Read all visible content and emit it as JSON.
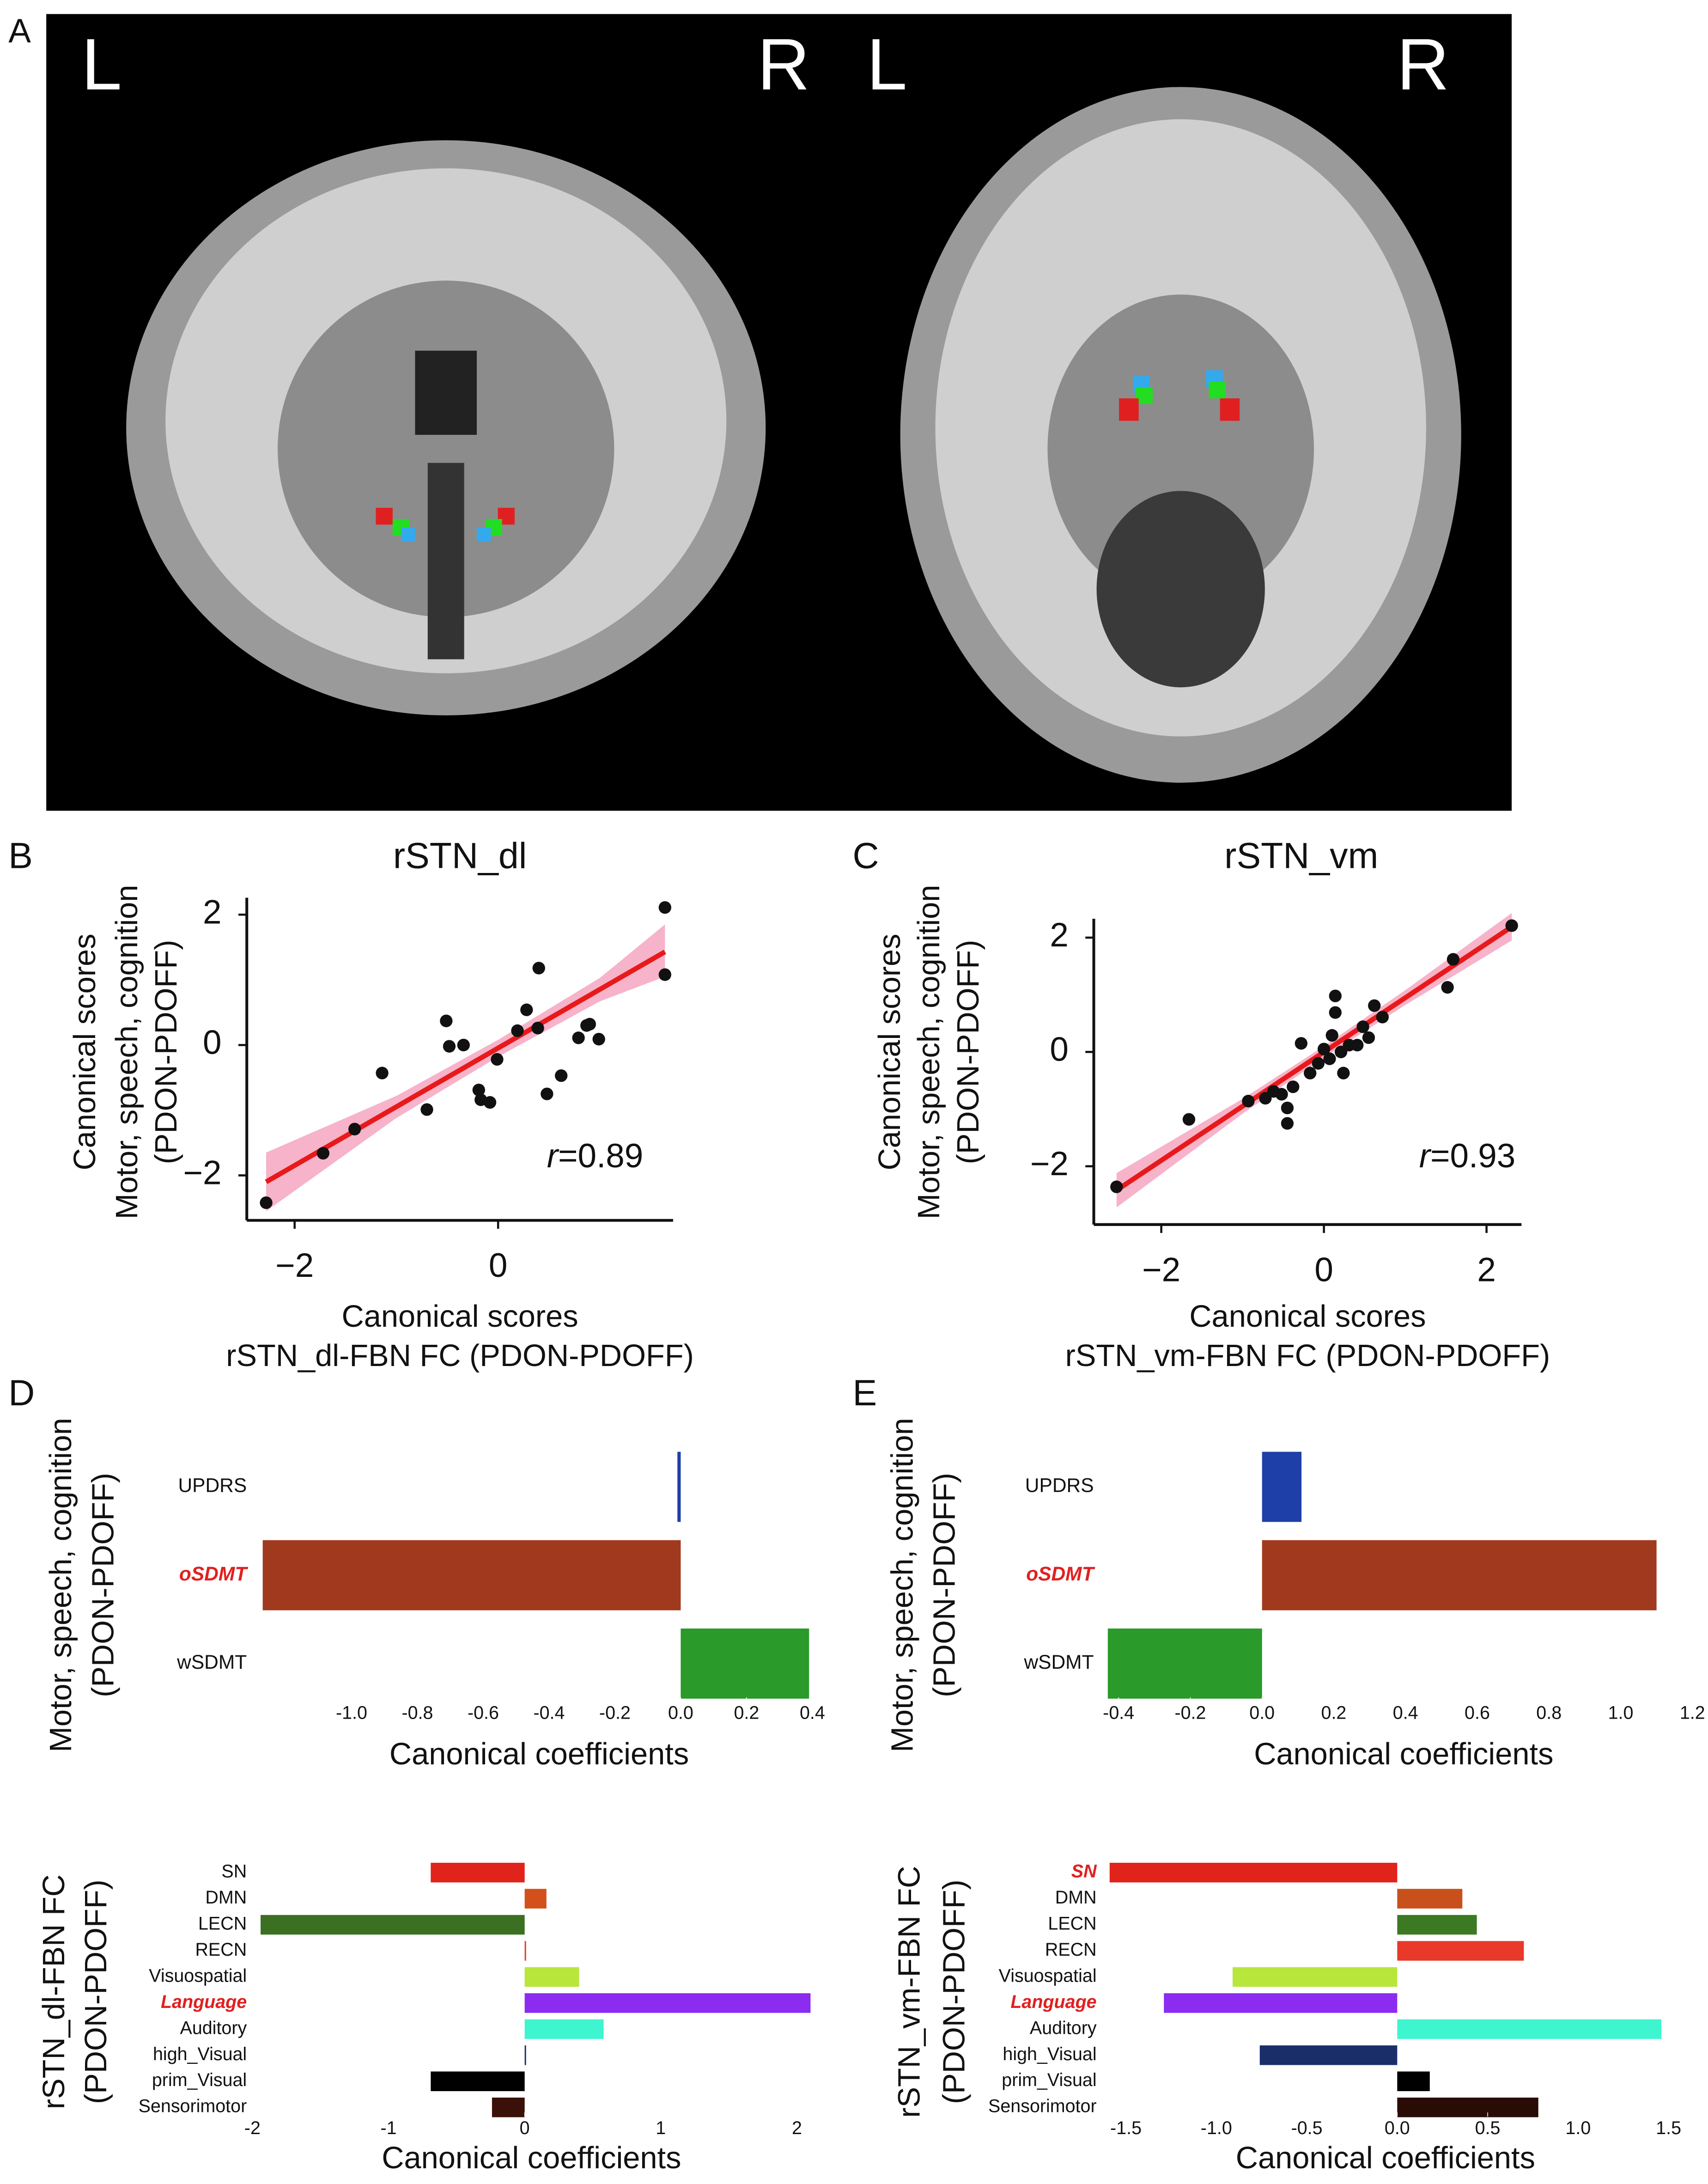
{
  "panel_a": {
    "label": "A",
    "sides": [
      "L",
      "R",
      "L",
      "R"
    ]
  },
  "chart_data": [
    {
      "type": "scatter",
      "panel": "B",
      "title": "rSTN_dl",
      "x_label": [
        "Canonical scores",
        "rSTN_dl-FBN FC (PDON-PDOFF)"
      ],
      "y_label": [
        "Canonical scores",
        "Motor, speech, cognition",
        "(PDON-PDOFF)"
      ],
      "annotation": "r=0.89",
      "color": "#111111",
      "fit_color": "#e8191b",
      "ci_color": "#f4a6c0",
      "x": [
        -2.28,
        -1.72,
        -1.41,
        -1.14,
        -0.7,
        -0.51,
        -0.48,
        -0.34,
        -0.19,
        -0.17,
        -0.08,
        -0.01,
        0.19,
        0.28,
        0.4,
        0.39,
        0.48,
        0.62,
        0.79,
        0.87,
        0.9,
        0.99,
        1.64,
        1.64
      ],
      "values": [
        -2.42,
        -1.66,
        -1.29,
        -0.43,
        -0.99,
        0.37,
        -0.02,
        0,
        -0.69,
        -0.84,
        -0.88,
        -0.22,
        0.22,
        0.54,
        1.18,
        0.26,
        -0.75,
        -0.47,
        0.11,
        0.3,
        0.32,
        0.09,
        2.11,
        1.08
      ],
      "fit": {
        "x": [
          -2.28,
          1.64
        ],
        "y": [
          -2.1,
          1.43
        ]
      },
      "ci": {
        "x": [
          -2.28,
          -1,
          0,
          1,
          1.64
        ],
        "lower": [
          -2.55,
          -1.12,
          -0.18,
          0.67,
          1.05
        ],
        "upper": [
          -1.65,
          -0.78,
          0.08,
          1.03,
          1.85
        ]
      },
      "xlim": [
        -2.47,
        1.72
      ],
      "ylim": [
        -2.69,
        2.26
      ],
      "xticks": [
        {
          "value": -2,
          "label": "−2"
        },
        0
      ],
      "yticks": [
        {
          "value": -2,
          "label": "−2"
        },
        0,
        2
      ]
    },
    {
      "type": "scatter",
      "panel": "C",
      "title": "rSTN_vm",
      "x_label": [
        "Canonical scores",
        "rSTN_vm-FBN FC (PDON-PDOFF)"
      ],
      "y_label": [
        "Canonical scores",
        "Motor, speech, cognition",
        "(PDON-PDOFF)"
      ],
      "annotation": "r=0.93",
      "color": "#111111",
      "fit_color": "#e8191b",
      "ci_color": "#f4a6c0",
      "x": [
        -2.55,
        -1.66,
        -0.93,
        -0.72,
        -0.62,
        -0.52,
        -0.45,
        -0.45,
        -0.38,
        -0.28,
        -0.17,
        -0.07,
        0,
        0.07,
        0.1,
        0.14,
        0.14,
        0.21,
        0.24,
        0.31,
        0.41,
        0.48,
        0.55,
        0.62,
        0.72,
        1.52,
        1.59,
        2.31
      ],
      "values": [
        -2.36,
        -1.18,
        -0.86,
        -0.81,
        -0.69,
        -0.74,
        -0.98,
        -1.25,
        -0.61,
        0.15,
        -0.37,
        -0.2,
        0.05,
        -0.12,
        0.29,
        0.98,
        0.69,
        0,
        -0.37,
        0.12,
        0.12,
        0.44,
        0.25,
        0.81,
        0.61,
        1.13,
        1.62,
        2.21
      ],
      "fit": {
        "x": [
          -2.55,
          2.31
        ],
        "y": [
          -2.42,
          2.19
        ]
      },
      "ci": {
        "x": [
          -2.55,
          -1,
          0,
          1,
          2.31
        ],
        "lower": [
          -2.72,
          -1.08,
          -0.1,
          0.82,
          1.95
        ],
        "upper": [
          -2.12,
          -0.82,
          0.1,
          1.08,
          2.43
        ]
      },
      "xlim": [
        -2.83,
        2.43
      ],
      "ylim": [
        -3.02,
        2.33
      ],
      "xticks": [
        {
          "value": -2,
          "label": "−2"
        },
        0,
        2
      ],
      "yticks": [
        {
          "value": -2,
          "label": "−2"
        },
        0,
        2
      ]
    },
    {
      "type": "bar",
      "orientation": "horizontal",
      "panel": "D",
      "x_label": "Canonical coefficients",
      "y_label": [
        "Motor, speech, cognition",
        "(PDON-PDOFF)"
      ],
      "categories": [
        "UPDRS",
        "oSDMT",
        "wSDMT"
      ],
      "values": [
        -0.01,
        -1.27,
        0.39
      ],
      "colors": [
        "#1f3fa8",
        "#a0391e",
        "#2a9a2a"
      ],
      "highlight": [
        1
      ],
      "highlight_color": "#e02020",
      "xlim": [
        -1.28,
        0.42
      ],
      "xticks": [
        {
          "value": -1,
          "label": "-1.0"
        },
        -0.8,
        -0.6,
        -0.4,
        -0.2,
        {
          "value": 0,
          "label": "0.0"
        },
        0.2,
        0.4
      ]
    },
    {
      "type": "bar",
      "orientation": "horizontal",
      "panel": "E",
      "x_label": "Canonical coefficients",
      "y_label": [
        "Motor, speech, cognition",
        "(PDON-PDOFF)"
      ],
      "categories": [
        "UPDRS",
        "oSDMT",
        "wSDMT"
      ],
      "values": [
        0.11,
        1.1,
        -0.43
      ],
      "colors": [
        "#1f3fa8",
        "#a0391e",
        "#2a9a2a"
      ],
      "highlight": [
        1
      ],
      "highlight_color": "#e02020",
      "xlim": [
        -0.43,
        1.22
      ],
      "xticks": [
        -0.4,
        -0.2,
        {
          "value": 0,
          "label": "0.0"
        },
        0.2,
        0.4,
        0.6,
        0.8,
        {
          "value": 1,
          "label": "1.0"
        },
        1.2
      ]
    },
    {
      "type": "bar",
      "orientation": "horizontal",
      "x_label": "Canonical coefficients",
      "y_label": [
        "rSTN_dl-FBN FC",
        "(PDON-PDOFF)"
      ],
      "categories": [
        "SN",
        "DMN",
        "LECN",
        "RECN",
        "Visuospatial",
        "Language",
        "Auditory",
        "high_Visual",
        "prim_Visual",
        "Sensorimotor"
      ],
      "values": [
        -0.69,
        0.16,
        -1.94,
        0.01,
        0.4,
        2.1,
        0.58,
        0,
        -0.69,
        -0.24
      ],
      "colors": [
        "#e0231b",
        "#d4501a",
        "#3b7022",
        "#e8392a",
        "#b8e63a",
        "#8b2cf0",
        "#3ff5d0",
        "#1a2e6a",
        "#000000",
        "#3a1008"
      ],
      "highlight": [
        5
      ],
      "highlight_color": "#e02020",
      "xlim": [
        -2,
        2.1
      ],
      "xticks": [
        -2,
        -1,
        0,
        1,
        2
      ]
    },
    {
      "type": "bar",
      "orientation": "horizontal",
      "x_label": "Canonical coefficients",
      "y_label": [
        "rSTN_vm-FBN FC",
        "(PDON-PDOFF)"
      ],
      "categories": [
        "SN",
        "DMN",
        "LECN",
        "RECN",
        "Visuospatial",
        "Language",
        "Auditory",
        "high_Visual",
        "prim_Visual",
        "Sensorimotor"
      ],
      "values": [
        -1.59,
        0.36,
        0.44,
        0.7,
        -0.91,
        -1.29,
        1.46,
        -0.76,
        0.18,
        0.78
      ],
      "colors": [
        "#e0231b",
        "#c8501a",
        "#3b7a22",
        "#e8392a",
        "#b8e63a",
        "#8b2cf0",
        "#3ff5d0",
        "#1a2e6a",
        "#000000",
        "#2a0c06"
      ],
      "highlight": [
        0,
        5
      ],
      "highlight_color": "#e02020",
      "xlim": [
        -1.6,
        1.47
      ],
      "xticks": [
        -1.5,
        {
          "value": -1,
          "label": "-1.0"
        },
        -0.5,
        {
          "value": 0,
          "label": "0.0"
        },
        0.5,
        {
          "value": 1,
          "label": "1.0"
        },
        1.5
      ]
    }
  ]
}
